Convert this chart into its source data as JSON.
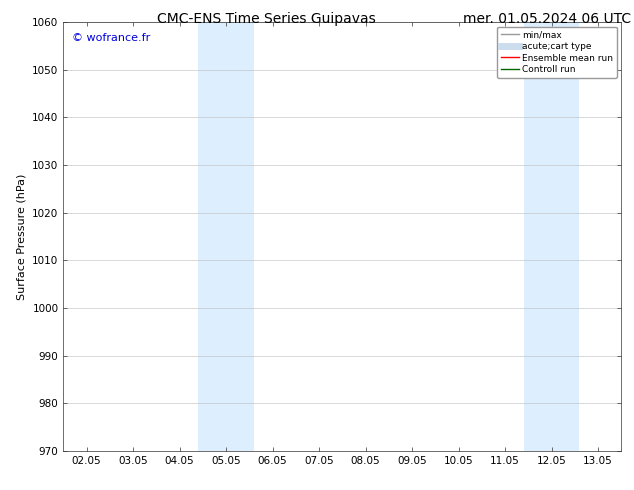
{
  "title": "CMC-ENS Time Series Guipavas",
  "title2": "mer. 01.05.2024 06 UTC",
  "ylabel": "Surface Pressure (hPa)",
  "watermark": "© wofrance.fr",
  "watermark_color": "#0000dd",
  "ylim": [
    970,
    1060
  ],
  "yticks": [
    970,
    980,
    990,
    1000,
    1010,
    1020,
    1030,
    1040,
    1050,
    1060
  ],
  "xtick_labels": [
    "02.05",
    "03.05",
    "04.05",
    "05.05",
    "06.05",
    "07.05",
    "08.05",
    "09.05",
    "10.05",
    "11.05",
    "12.05",
    "13.05"
  ],
  "xtick_positions": [
    0,
    1,
    2,
    3,
    4,
    5,
    6,
    7,
    8,
    9,
    10,
    11
  ],
  "xlim": [
    -0.5,
    11.5
  ],
  "shade_bands": [
    {
      "xmin": 2.4,
      "xmax": 3.6,
      "color": "#ddeeff"
    },
    {
      "xmin": 9.4,
      "xmax": 10.6,
      "color": "#ddeeff"
    }
  ],
  "legend_entries": [
    {
      "label": "min/max",
      "color": "#999999",
      "lw": 1.0,
      "ls": "-"
    },
    {
      "label": "acute;cart type",
      "color": "#ccddee",
      "lw": 5,
      "ls": "-"
    },
    {
      "label": "Ensemble mean run",
      "color": "#ff0000",
      "lw": 1.0,
      "ls": "-"
    },
    {
      "label": "Controll run",
      "color": "#006600",
      "lw": 1.0,
      "ls": "-"
    }
  ],
  "bg_color": "#ffffff",
  "grid_color": "#bbbbbb",
  "title_fontsize": 10,
  "axis_fontsize": 8,
  "tick_fontsize": 7.5,
  "watermark_fontsize": 8
}
